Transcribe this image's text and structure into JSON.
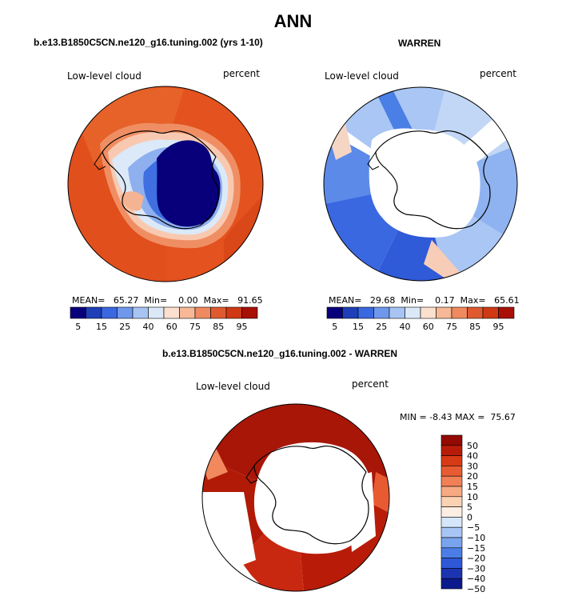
{
  "main_title": "ANN",
  "palette": [
    "#08007a",
    "#1e3fb8",
    "#3a68e0",
    "#6f98ec",
    "#a7c4f3",
    "#dbe8f8",
    "#fbe0cf",
    "#f6b896",
    "#f08a60",
    "#e05a30",
    "#cf3a14",
    "#a80f05"
  ],
  "diff_palette": [
    "#0b1a8c",
    "#1c34b0",
    "#2f58d8",
    "#4a7ee6",
    "#7aa3ee",
    "#a8c6f5",
    "#d6e6fa",
    "#fdeee3",
    "#fbd1b4",
    "#f7aa82",
    "#f18057",
    "#e85b32",
    "#d83a16",
    "#b81c08",
    "#920a02"
  ],
  "chart_data": [
    {
      "type": "heatmap",
      "projection": "south-polar-stereographic",
      "title": "b.e13.B1850C5CN.ne120_g16.tuning.002 (yrs 1-10)",
      "left_label": "Low-level cloud",
      "right_label": "percent",
      "stats": {
        "mean_label": "MEAN=",
        "mean": "65.27",
        "min_label": "Min=",
        "min": "0.00",
        "max_label": "Max=",
        "max": "91.65"
      },
      "colorbar": {
        "orientation": "horizontal",
        "labels": [
          "5",
          "15",
          "25",
          "40",
          "60",
          "75",
          "85",
          "95"
        ]
      }
    },
    {
      "type": "heatmap",
      "projection": "south-polar-stereographic",
      "title": "WARREN",
      "left_label": "Low-level cloud",
      "right_label": "percent",
      "stats": {
        "mean_label": "MEAN=",
        "mean": "29.68",
        "min_label": "Min=",
        "min": "0.17",
        "max_label": "Max=",
        "max": "65.61"
      },
      "colorbar": {
        "orientation": "horizontal",
        "labels": [
          "5",
          "15",
          "25",
          "40",
          "60",
          "75",
          "85",
          "95"
        ]
      }
    },
    {
      "type": "heatmap",
      "projection": "south-polar-stereographic",
      "title": "b.e13.B1850C5CN.ne120_g16.tuning.002 - WARREN",
      "left_label": "Low-level cloud",
      "right_label": "percent",
      "stats": {
        "min_label": "MIN =",
        "min": "-8.43",
        "max_label": "MAX =",
        "max": "75.67"
      },
      "colorbar": {
        "orientation": "vertical",
        "labels": [
          "50",
          "40",
          "30",
          "20",
          "15",
          "10",
          "5",
          "0",
          "−5",
          "−10",
          "−15",
          "−20",
          "−30",
          "−40",
          "−50"
        ]
      }
    }
  ]
}
